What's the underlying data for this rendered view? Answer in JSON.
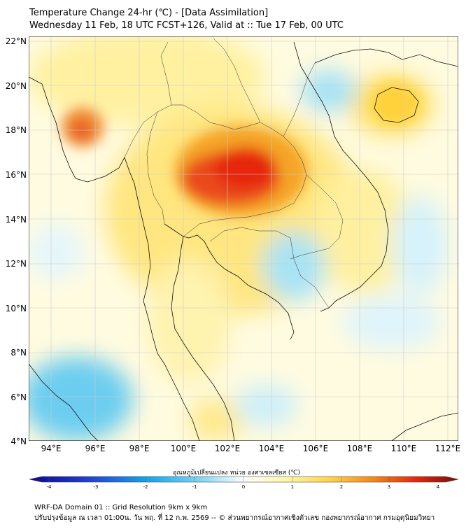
{
  "header": {
    "title_line1": "Temperature Change 24-hr (℃) - [Data Assimilation]",
    "title_line2": "Wednesday 11 Feb, 18 UTC FCST+126, Valid at :: Tue 17 Feb, 00 UTC"
  },
  "map": {
    "lat_ticks": [
      "22°N",
      "20°N",
      "18°N",
      "16°N",
      "14°N",
      "12°N",
      "10°N",
      "8°N",
      "6°N",
      "4°N"
    ],
    "lon_ticks": [
      "94°E",
      "96°E",
      "98°E",
      "100°E",
      "102°E",
      "104°E",
      "106°E",
      "108°E",
      "110°E",
      "112°E"
    ]
  },
  "colorbar": {
    "label": "อุณหภูมิเปลี่ยนแปลง หน่วย องศาเซลเซียส (℃)",
    "ticks": [
      "-4",
      "-3",
      "-2",
      "-1",
      "0",
      "1",
      "2",
      "3",
      "4"
    ]
  },
  "footer": {
    "line1": "WRF-DA Domain 01 :: Grid Resolution 9km x 9km",
    "line2": "ปรับปรุงข้อมูล ณ เวลา 01:00น. วัน พฤ. ที่ 12 ก.พ. 2569 -- © ส่วนพยากรณ์อากาศเชิงตัวเลข กองพยากรณ์อากาศ กรมอุตุนิยมวิทยา"
  },
  "colors": {
    "hot_core": "#e6200f",
    "warm": "#f2a226",
    "mild_warm": "#fff3a3",
    "cool": "#bfeaf6",
    "cold": "#5cc6ee",
    "coast": "#111111"
  }
}
